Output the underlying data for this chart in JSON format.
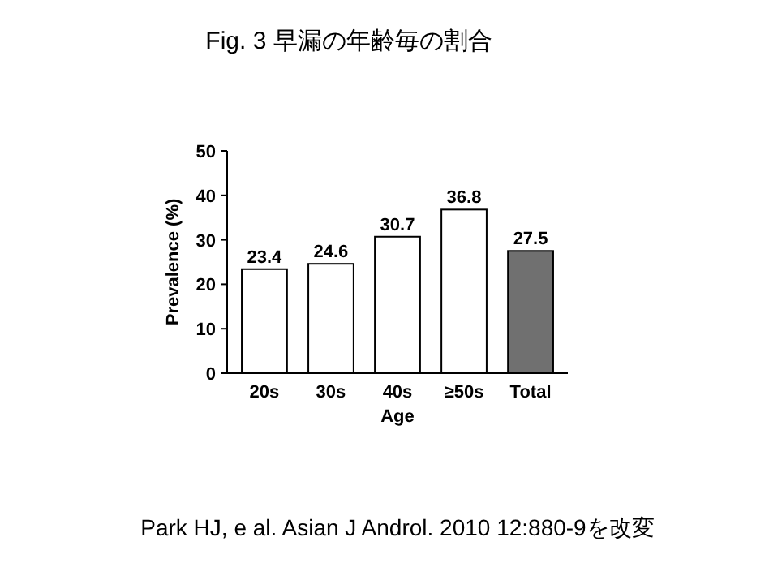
{
  "chart_data": {
    "type": "bar",
    "title": "Fig. 3 早漏の年齢毎の割合",
    "categories": [
      "20s",
      "30s",
      "40s",
      "≥50s",
      "Total"
    ],
    "values": [
      23.4,
      24.6,
      30.7,
      36.8,
      27.5
    ],
    "colors": [
      "#ffffff",
      "#ffffff",
      "#ffffff",
      "#ffffff",
      "#707070"
    ],
    "xlabel": "Age",
    "ylabel": "Prevalence (%)",
    "ylim": [
      0,
      50
    ],
    "yticks": [
      0,
      10,
      20,
      30,
      40,
      50
    ],
    "data_labels": true,
    "grid": false,
    "annotations": [
      "Park HJ, e al.  Asian J Androl. 2010 12:880-9を改変"
    ]
  }
}
